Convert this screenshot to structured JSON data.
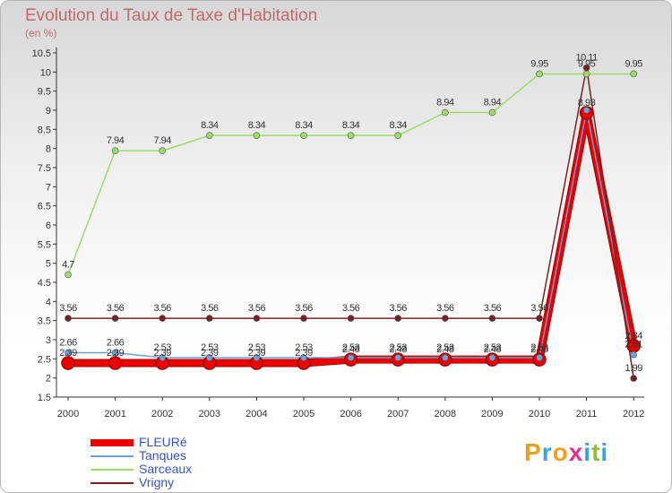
{
  "header": {
    "title": "Evolution du Taux de Taxe d'Habitation",
    "subtitle": "(en %)"
  },
  "logo": {
    "text": "Proxiti",
    "colors": [
      "#e8a020",
      "#3aa0e0",
      "#f0a020",
      "#e03090",
      "#3aa0e0",
      "#90c030",
      "#3aa0e0"
    ]
  },
  "chart_data": {
    "type": "line",
    "title": "Evolution du Taux de Taxe d'Habitation",
    "subtitle": "(en %)",
    "x": [
      "2000",
      "2001",
      "2002",
      "2003",
      "2004",
      "2005",
      "2006",
      "2007",
      "2008",
      "2009",
      "2010",
      "2011",
      "2012"
    ],
    "ylim": [
      1.5,
      10.5
    ],
    "yticks": [
      "1.5",
      "2",
      "2.5",
      "3",
      "3.5",
      "4",
      "4.5",
      "5",
      "5.5",
      "6",
      "6.5",
      "7",
      "7.5",
      "8",
      "8.5",
      "9",
      "9.5",
      "10",
      "10.5"
    ],
    "legend_position": "bottom-left",
    "series": [
      {
        "name": "FLEURé",
        "color": "#ee0000",
        "width": 7,
        "marker": 7,
        "values": [
          2.39,
          2.39,
          2.39,
          2.39,
          2.39,
          2.39,
          2.48,
          2.48,
          2.48,
          2.48,
          2.48,
          8.93,
          2.84
        ],
        "labels": [
          "2.39",
          "2.39",
          "2.39",
          "2.39",
          "2.39",
          "2.39",
          "2.48",
          "2.48",
          "2.48",
          "2.48",
          "2.48",
          "8.93",
          "2.84"
        ]
      },
      {
        "name": "Tanques",
        "color": "#6fa0d8",
        "width": 1.5,
        "marker": 3.5,
        "values": [
          2.66,
          2.66,
          2.53,
          2.53,
          2.53,
          2.53,
          2.53,
          2.53,
          2.53,
          2.53,
          2.53,
          9.0,
          2.61
        ],
        "labels": [
          "2.66",
          "2.66",
          "2.53",
          "2.53",
          "2.53",
          "2.53",
          "2.53",
          "2.53",
          "2.53",
          "2.53",
          "2.53",
          "",
          "2.61"
        ]
      },
      {
        "name": "Sarceaux",
        "color": "#99dd66",
        "width": 1.5,
        "marker": 3.5,
        "values": [
          4.7,
          7.94,
          7.94,
          8.34,
          8.34,
          8.34,
          8.34,
          8.34,
          8.94,
          8.94,
          9.95,
          9.95,
          9.95
        ],
        "labels": [
          "4.7",
          "7.94",
          "7.94",
          "8.34",
          "8.34",
          "8.34",
          "8.34",
          "8.34",
          "8.94",
          "8.94",
          "9.95",
          "9.95",
          "9.95"
        ]
      },
      {
        "name": "Vrigny",
        "color": "#772222",
        "width": 1.5,
        "marker": 3.5,
        "values": [
          3.56,
          3.56,
          3.56,
          3.56,
          3.56,
          3.56,
          3.56,
          3.56,
          3.56,
          3.56,
          3.56,
          10.11,
          1.99
        ],
        "labels": [
          "3.56",
          "3.56",
          "3.56",
          "3.56",
          "3.56",
          "3.56",
          "3.56",
          "3.56",
          "3.56",
          "3.56",
          "3.56",
          "10.11",
          "1.99"
        ]
      }
    ]
  }
}
